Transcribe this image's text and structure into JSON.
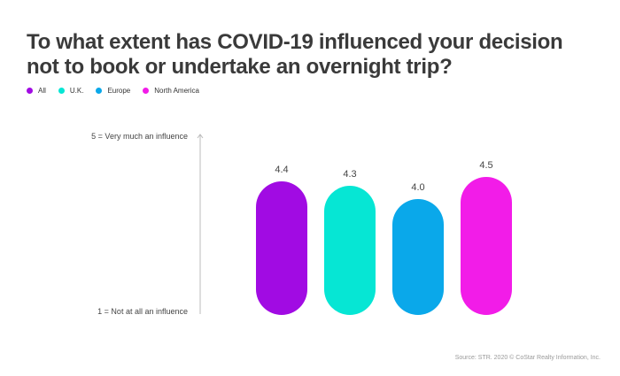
{
  "title": "To what extent has COVID-19 influenced your decision not to book or undertake an overnight trip?",
  "legend": [
    {
      "label": "All",
      "color": "#a10be3"
    },
    {
      "label": "U.K.",
      "color": "#06e6d4"
    },
    {
      "label": "Europe",
      "color": "#0aa8ea"
    },
    {
      "label": "North America",
      "color": "#f21ce8"
    }
  ],
  "axis": {
    "top_label": "5 = Very much an influence",
    "bottom_label": "1 = Not at all an influence"
  },
  "source": "Source: STR. 2020 © CoStar Realty Information, Inc.",
  "chart_data": {
    "type": "bar",
    "categories": [
      "All",
      "U.K.",
      "Europe",
      "North America"
    ],
    "values": [
      4.4,
      4.3,
      4.0,
      4.5
    ],
    "value_labels": [
      "4.4",
      "4.3",
      "4.0",
      "4.5"
    ],
    "colors": [
      "#a10be3",
      "#06e6d4",
      "#0aa8ea",
      "#f21ce8"
    ],
    "ylim": [
      1,
      5
    ],
    "ylabel_top": "5 = Very much an influence",
    "ylabel_bottom": "1 = Not at all an influence",
    "grid": false,
    "legend_position": "top-left"
  }
}
